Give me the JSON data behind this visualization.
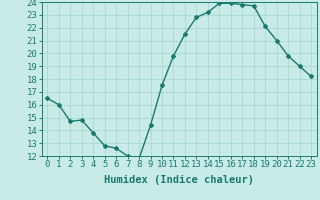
{
  "x": [
    0,
    1,
    2,
    3,
    4,
    5,
    6,
    7,
    8,
    9,
    10,
    11,
    12,
    13,
    14,
    15,
    16,
    17,
    18,
    19,
    20,
    21,
    22,
    23
  ],
  "y": [
    16.5,
    16.0,
    14.7,
    14.8,
    13.8,
    12.8,
    12.6,
    12.0,
    11.8,
    14.4,
    17.5,
    19.8,
    21.5,
    22.8,
    23.2,
    23.9,
    23.9,
    23.8,
    23.7,
    22.1,
    21.0,
    19.8,
    19.0,
    18.2
  ],
  "title": "",
  "xlabel": "Humidex (Indice chaleur)",
  "ylabel": "",
  "ylim": [
    12,
    24
  ],
  "xlim": [
    -0.5,
    23.5
  ],
  "yticks": [
    12,
    13,
    14,
    15,
    16,
    17,
    18,
    19,
    20,
    21,
    22,
    23,
    24
  ],
  "xticks": [
    0,
    1,
    2,
    3,
    4,
    5,
    6,
    7,
    8,
    9,
    10,
    11,
    12,
    13,
    14,
    15,
    16,
    17,
    18,
    19,
    20,
    21,
    22,
    23
  ],
  "line_color": "#1a7a6e",
  "marker": "D",
  "marker_size": 2.0,
  "background_color": "#c8ebe8",
  "grid_color": "#a8d8d4",
  "xlabel_fontsize": 7.5,
  "tick_fontsize": 6.5,
  "line_width": 1.0
}
